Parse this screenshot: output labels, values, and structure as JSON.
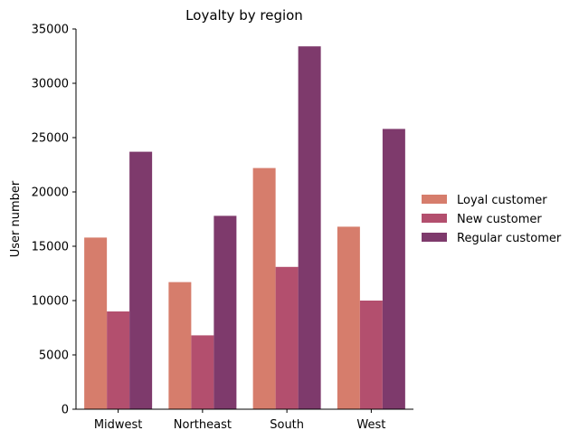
{
  "chart_data": {
    "type": "bar",
    "title": "Loyalty by region",
    "xlabel": "",
    "ylabel": "User number",
    "categories": [
      "Midwest",
      "Northeast",
      "South",
      "West"
    ],
    "series": [
      {
        "name": "Loyal customer",
        "color": "#d67d6c",
        "values": [
          15800,
          11700,
          22200,
          16800
        ]
      },
      {
        "name": "New customer",
        "color": "#b34f6e",
        "values": [
          9000,
          6800,
          13100,
          10000
        ]
      },
      {
        "name": "Regular customer",
        "color": "#7e3a6c",
        "values": [
          23700,
          17800,
          33400,
          25800
        ]
      }
    ],
    "ylim": [
      0,
      35000
    ],
    "yticks": [
      "0",
      "5000",
      "10000",
      "15000",
      "20000",
      "25000",
      "30000",
      "35000"
    ],
    "grid": false,
    "legend_position": "right"
  }
}
